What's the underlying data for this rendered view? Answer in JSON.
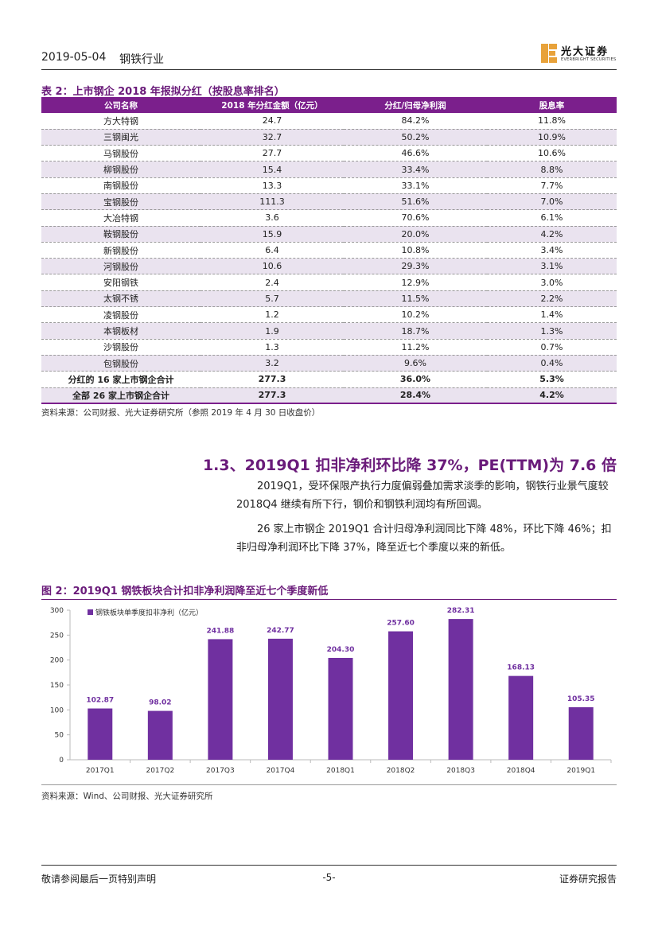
{
  "header": {
    "date": "2019-05-04",
    "industry": "钢铁行业",
    "logo_name": "光大证券",
    "logo_sub": "EVERBRIGHT SECURITIES"
  },
  "table": {
    "caption": "表 2：上市钢企 2018 年报拟分红（按股息率排名）",
    "columns": [
      "公司名称",
      "2018 年分红金额（亿元）",
      "分红/归母净利润",
      "股息率"
    ],
    "rows": [
      [
        "方大特钢",
        "24.7",
        "84.2%",
        "11.8%"
      ],
      [
        "三钢闽光",
        "32.7",
        "50.2%",
        "10.9%"
      ],
      [
        "马钢股份",
        "27.7",
        "46.6%",
        "10.6%"
      ],
      [
        "柳钢股份",
        "15.4",
        "33.4%",
        "8.8%"
      ],
      [
        "南钢股份",
        "13.3",
        "33.1%",
        "7.7%"
      ],
      [
        "宝钢股份",
        "111.3",
        "51.6%",
        "7.0%"
      ],
      [
        "大冶特钢",
        "3.6",
        "70.6%",
        "6.1%"
      ],
      [
        "鞍钢股份",
        "15.9",
        "20.0%",
        "4.2%"
      ],
      [
        "新钢股份",
        "6.4",
        "10.8%",
        "3.4%"
      ],
      [
        "河钢股份",
        "10.6",
        "29.3%",
        "3.1%"
      ],
      [
        "安阳钢铁",
        "2.4",
        "12.9%",
        "3.0%"
      ],
      [
        "太钢不锈",
        "5.7",
        "11.5%",
        "2.2%"
      ],
      [
        "凌钢股份",
        "1.2",
        "10.2%",
        "1.4%"
      ],
      [
        "本钢板材",
        "1.9",
        "18.7%",
        "1.3%"
      ],
      [
        "沙钢股份",
        "1.3",
        "11.2%",
        "0.7%"
      ],
      [
        "包钢股份",
        "3.2",
        "9.6%",
        "0.4%"
      ]
    ],
    "summary": [
      [
        "分红的 16 家上市钢企合计",
        "277.3",
        "36.0%",
        "5.3%"
      ],
      [
        "全部 26 家上市钢企合计",
        "277.3",
        "28.4%",
        "4.2%"
      ]
    ],
    "source": "资料来源：公司财报、光大证券研究所（参照 2019 年 4 月 30 日收盘价）"
  },
  "section": {
    "title": "1.3、2019Q1 扣非净利环比降 37%，PE(TTM)为 7.6 倍",
    "para1": "2019Q1，受环保限产执行力度偏弱叠加需求淡季的影响，钢铁行业景气度较 2018Q4 继续有所下行，钢价和钢铁利润均有所回调。",
    "para2": "26 家上市钢企 2019Q1 合计归母净利润同比下降 48%，环比下降 46%；扣非归母净利润环比下降 37%，降至近七个季度以来的新低。"
  },
  "figure": {
    "caption": "图 2：2019Q1 钢铁板块合计扣非净利润降至近七个季度新低",
    "source": "资料来源：Wind、公司财报、光大证券研究所"
  },
  "chart_data": {
    "type": "bar",
    "categories": [
      "2017Q1",
      "2017Q2",
      "2017Q3",
      "2017Q4",
      "2018Q1",
      "2018Q2",
      "2018Q3",
      "2018Q4",
      "2019Q1"
    ],
    "series": [
      {
        "name": "钢铁板块单季度扣非净利（亿元）",
        "values": [
          102.87,
          98.02,
          241.88,
          242.77,
          204.3,
          257.6,
          282.31,
          168.13,
          105.35
        ]
      }
    ],
    "ylim": [
      0,
      300
    ],
    "yticks": [
      0,
      50,
      100,
      150,
      200,
      250,
      300
    ],
    "grid": false,
    "legend": "top-left",
    "bar_color": "#7030a0"
  },
  "footer": {
    "left": "敬请参阅最后一页特别声明",
    "page": "-5-",
    "right": "证券研究报告"
  }
}
